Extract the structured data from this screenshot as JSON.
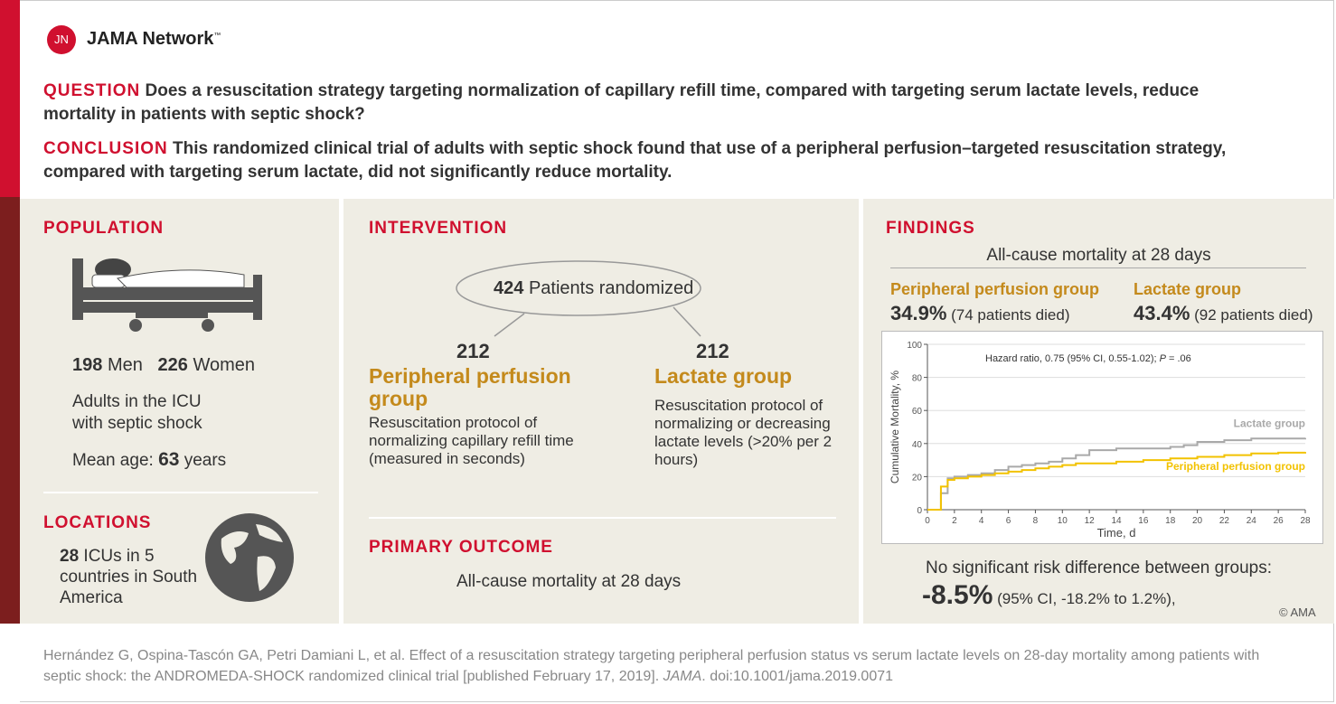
{
  "header": {
    "logo_text": "JN",
    "brand": "JAMA Network",
    "trademark": "™"
  },
  "question": {
    "label": "QUESTION",
    "text": "Does a resuscitation strategy targeting normalization of capillary refill time, compared with targeting serum lactate levels, reduce mortality in patients with septic shock?"
  },
  "conclusion": {
    "label": "CONCLUSION",
    "text": "This randomized clinical trial of adults with septic shock found that use of a peripheral perfusion–targeted resuscitation strategy, compared with targeting serum lactate, did not significantly reduce mortality."
  },
  "population": {
    "title": "POPULATION",
    "men_count": 198,
    "men_label": "Men",
    "women_count": 226,
    "women_label": "Women",
    "description": "Adults in the ICU with septic shock",
    "age_label": "Mean age:",
    "age_value": 63,
    "age_unit": "years"
  },
  "locations": {
    "title": "LOCATIONS",
    "icu_count": 28,
    "text": "ICUs in 5 countries in South America"
  },
  "intervention": {
    "title": "INTERVENTION",
    "randomized_count": 424,
    "randomized_label": "Patients randomized",
    "arms": [
      {
        "count": 212,
        "name": "Peripheral perfusion group",
        "description": "Resuscitation protocol of normalizing capillary refill time (measured in seconds)"
      },
      {
        "count": 212,
        "name": "Lactate group",
        "description": "Resuscitation protocol of normalizing or decreasing lactate levels (>20% per 2 hours)"
      }
    ]
  },
  "primary_outcome": {
    "title": "PRIMARY OUTCOME",
    "text": "All-cause mortality at 28 days"
  },
  "findings": {
    "title": "FINDINGS",
    "subtitle": "All-cause mortality at 28 days",
    "groups": [
      {
        "name": "Peripheral perfusion group",
        "percent": "34.9%",
        "detail": "(74 patients died)"
      },
      {
        "name": "Lactate group",
        "percent": "43.4%",
        "detail": "(92 patients died)"
      }
    ],
    "risk_text": "No significant risk difference between groups:",
    "risk_value": "-8.5%",
    "risk_ci": "(95% CI, -18.2% to 1.2%),",
    "copyright": "© AMA"
  },
  "chart_data": {
    "type": "line",
    "step": true,
    "xlabel": "Time, d",
    "ylabel": "Cumulative Mortality, %",
    "annotation": {
      "before": "Hazard ratio, 0.75 (95% CI, 0.55-1.02); ",
      "italic": "P",
      "after": " = .06"
    },
    "xlim": [
      0,
      28
    ],
    "xticks": [
      0,
      2,
      4,
      6,
      8,
      10,
      12,
      14,
      16,
      18,
      20,
      22,
      24,
      26,
      28
    ],
    "ylim": [
      0,
      100
    ],
    "yticks": [
      0,
      20,
      40,
      60,
      80,
      100
    ],
    "series": [
      {
        "name": "Lactate group",
        "color": "#a9a9a9",
        "x": [
          0,
          1,
          1.5,
          2,
          3,
          4,
          5,
          6,
          7,
          8,
          9,
          10,
          11,
          12,
          14,
          16,
          18,
          19,
          20,
          22,
          24,
          26,
          28
        ],
        "values": [
          0,
          10,
          19,
          20,
          21,
          22,
          24,
          26,
          27,
          28,
          29,
          31,
          33,
          36,
          37,
          37,
          38,
          39,
          41,
          42,
          43,
          43,
          43.4
        ]
      },
      {
        "name": "Peripheral perfusion group",
        "color": "#f2c200",
        "x": [
          0,
          1,
          1.5,
          2,
          3,
          4,
          5,
          6,
          7,
          8,
          9,
          10,
          11,
          14,
          16,
          18,
          20,
          22,
          24,
          26,
          28
        ],
        "values": [
          0,
          14,
          18,
          19,
          20,
          21,
          22,
          23,
          24,
          25,
          26,
          27,
          28,
          29,
          30,
          31,
          32,
          33,
          34,
          34.5,
          34.9
        ]
      }
    ]
  },
  "citation": {
    "before": "Hernández G, Ospina-Tascón GA, Petri Damiani L, et al. Effect of a resuscitation strategy targeting peripheral perfusion status vs serum lactate levels on 28-day mortality among patients with septic shock: the ANDROMEDA-SHOCK randomized clinical trial [published February 17, 2019]. ",
    "journal": "JAMA",
    "after": ". doi:10.1001/jama.2019.0071"
  }
}
